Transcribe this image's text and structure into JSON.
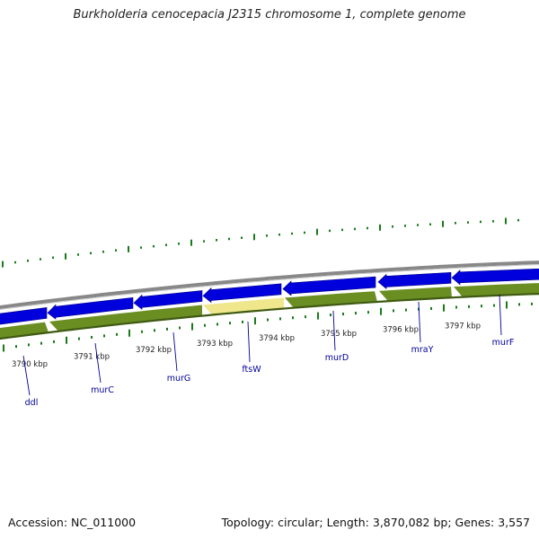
{
  "title": "Burkholderia cenocepacia J2315 chromosome 1, complete genome",
  "accession_text": "Accession: NC_011000",
  "summary_text": "Topology: circular; Length: 3,870,082 bp; Genes: 3,557",
  "kbp_ticks": [
    {
      "kbp": 3790,
      "label": "3790 kbp"
    },
    {
      "kbp": 3791,
      "label": "3791 kbp"
    },
    {
      "kbp": 3792,
      "label": "3792 kbp"
    },
    {
      "kbp": 3793,
      "label": "3793 kbp"
    },
    {
      "kbp": 3794,
      "label": "3794 kbp"
    },
    {
      "kbp": 3795,
      "label": "3795 kbp"
    },
    {
      "kbp": 3796,
      "label": "3796 kbp"
    },
    {
      "kbp": 3797,
      "label": "3797 kbp"
    }
  ],
  "gene_labels": [
    {
      "name": "ddl"
    },
    {
      "name": "murC"
    },
    {
      "name": "murG"
    },
    {
      "name": "ftsW"
    },
    {
      "name": "murD"
    },
    {
      "name": "mraY"
    },
    {
      "name": "murF"
    }
  ],
  "colors": {
    "cds_blue": "#0000dd",
    "gene_green": "#6b8e23",
    "highlight": "#f0e68c",
    "backbone": "#888888",
    "label_blue": "#000099",
    "tick_green": "#1a7a1a"
  }
}
